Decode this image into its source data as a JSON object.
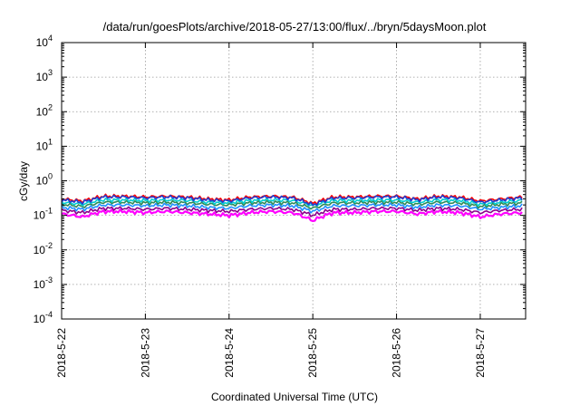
{
  "chart_data": {
    "type": "line",
    "title": "/data/run/goesPlots/archive/2018-05-27/13:00/flux/../bryn/5daysMoon.plot",
    "xlabel": "Coordinated Universal Time (UTC)",
    "ylabel": "cGy/day",
    "yscale": "log",
    "ylim": [
      0.0001,
      10000
    ],
    "xlim": [
      "2018-05-22 00:00",
      "2018-05-27 13:00"
    ],
    "grid": true,
    "legend": "none",
    "x_ticks": [
      "2018-5-22",
      "2018-5-23",
      "2018-5-24",
      "2018-5-25",
      "2018-5-26",
      "2018-5-27"
    ],
    "y_ticks": [
      {
        "base": "10",
        "exp": "-4"
      },
      {
        "base": "10",
        "exp": "-3"
      },
      {
        "base": "10",
        "exp": "-2"
      },
      {
        "base": "10",
        "exp": "-1"
      },
      {
        "base": "10",
        "exp": "0"
      },
      {
        "base": "10",
        "exp": "1"
      },
      {
        "base": "10",
        "exp": "2"
      },
      {
        "base": "10",
        "exp": "3"
      },
      {
        "base": "10",
        "exp": "4"
      }
    ],
    "x_days": [
      0,
      0.25,
      0.5,
      0.75,
      1.0,
      1.25,
      1.5,
      1.75,
      2.0,
      2.25,
      2.5,
      2.75,
      3.0,
      3.25,
      3.5,
      3.75,
      4.0,
      4.25,
      4.5,
      4.75,
      5.0,
      5.25,
      5.5
    ],
    "x_unit": "days since 2018-05-22 00:00 UTC",
    "series": [
      {
        "color": "#ff00ff",
        "values": [
          0.11,
          0.09,
          0.13,
          0.13,
          0.12,
          0.13,
          0.12,
          0.11,
          0.1,
          0.12,
          0.13,
          0.12,
          0.07,
          0.12,
          0.12,
          0.13,
          0.13,
          0.11,
          0.13,
          0.12,
          0.09,
          0.11,
          0.12
        ]
      },
      {
        "color": "#8b008b",
        "values": [
          0.14,
          0.12,
          0.16,
          0.16,
          0.15,
          0.16,
          0.15,
          0.14,
          0.13,
          0.15,
          0.16,
          0.15,
          0.1,
          0.15,
          0.15,
          0.16,
          0.16,
          0.14,
          0.16,
          0.15,
          0.12,
          0.14,
          0.15
        ]
      },
      {
        "color": "#1e90ff",
        "values": [
          0.17,
          0.15,
          0.2,
          0.2,
          0.19,
          0.2,
          0.19,
          0.17,
          0.16,
          0.19,
          0.2,
          0.19,
          0.13,
          0.19,
          0.19,
          0.2,
          0.2,
          0.17,
          0.2,
          0.19,
          0.15,
          0.17,
          0.19
        ]
      },
      {
        "color": "#2e8b57",
        "values": [
          0.21,
          0.18,
          0.24,
          0.24,
          0.23,
          0.24,
          0.23,
          0.21,
          0.2,
          0.23,
          0.24,
          0.23,
          0.16,
          0.23,
          0.23,
          0.24,
          0.24,
          0.21,
          0.24,
          0.23,
          0.18,
          0.21,
          0.23
        ]
      },
      {
        "color": "#00ced1",
        "values": [
          0.24,
          0.21,
          0.28,
          0.28,
          0.27,
          0.28,
          0.27,
          0.24,
          0.23,
          0.27,
          0.28,
          0.27,
          0.19,
          0.27,
          0.27,
          0.28,
          0.28,
          0.24,
          0.28,
          0.27,
          0.21,
          0.24,
          0.27
        ]
      },
      {
        "color": "#ff0000",
        "values": [
          0.3,
          0.26,
          0.36,
          0.36,
          0.34,
          0.36,
          0.34,
          0.3,
          0.28,
          0.34,
          0.36,
          0.34,
          0.22,
          0.34,
          0.34,
          0.36,
          0.36,
          0.3,
          0.36,
          0.34,
          0.26,
          0.3,
          0.34
        ]
      },
      {
        "color": "#1f3fd0",
        "values": [
          0.28,
          0.24,
          0.34,
          0.34,
          0.32,
          0.34,
          0.32,
          0.28,
          0.26,
          0.32,
          0.34,
          0.32,
          0.2,
          0.32,
          0.32,
          0.34,
          0.34,
          0.28,
          0.34,
          0.32,
          0.24,
          0.28,
          0.32
        ]
      }
    ]
  }
}
